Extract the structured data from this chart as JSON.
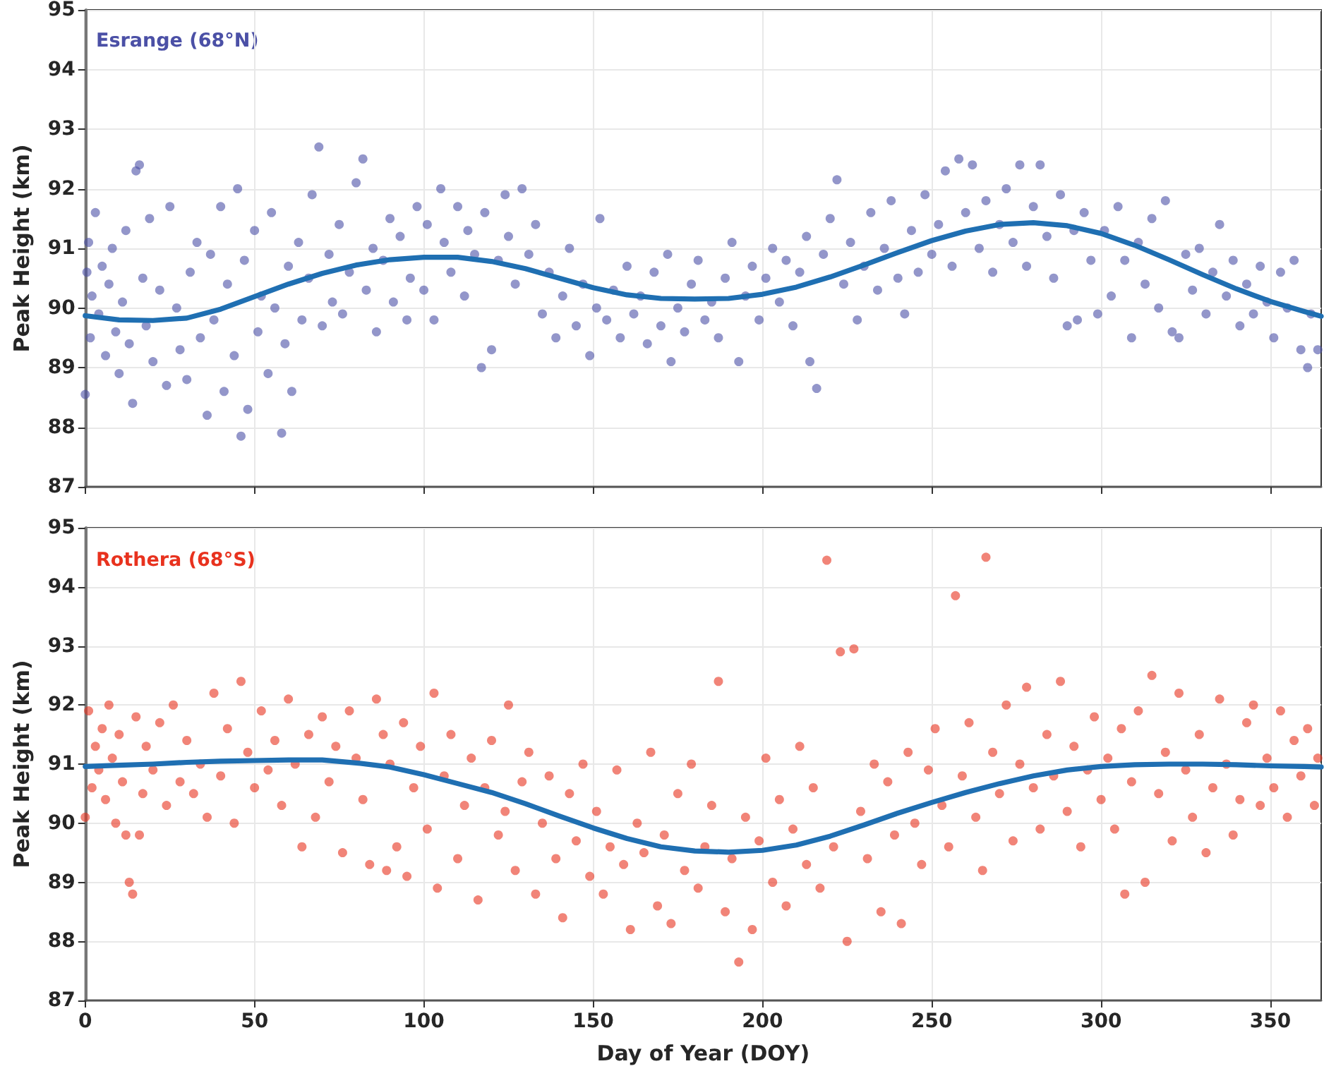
{
  "chart_data": [
    {
      "type": "scatter",
      "ylabel": "Peak Height (km)",
      "annotations": [
        "Esrange (68°N)"
      ],
      "xlim": [
        0,
        365
      ],
      "xticks": [
        0,
        50,
        100,
        150,
        200,
        250,
        300,
        350
      ],
      "ylim": [
        87,
        95
      ],
      "yticks": [
        87,
        88,
        89,
        90,
        91,
        92,
        93,
        94,
        95
      ],
      "grid": true,
      "tick_labels": "y",
      "marker": "circle",
      "series": [
        {
          "color": "#4b50a6",
          "x": [
            0,
            0.5,
            1,
            1.5,
            2,
            3,
            4,
            5,
            6,
            7,
            8,
            9,
            10,
            11,
            12,
            13,
            14,
            15,
            16,
            17,
            18,
            19,
            20,
            22,
            24,
            25,
            27,
            28,
            30,
            31,
            33,
            34,
            36,
            37,
            38,
            40,
            41,
            42,
            44,
            45,
            46,
            47,
            48,
            50,
            51,
            52,
            54,
            55,
            56,
            58,
            59,
            60,
            61,
            63,
            64,
            66,
            67,
            69,
            70,
            72,
            73,
            75,
            76,
            78,
            80,
            82,
            83,
            85,
            86,
            88,
            90,
            91,
            93,
            95,
            96,
            98,
            100,
            101,
            103,
            105,
            106,
            108,
            110,
            112,
            113,
            115,
            117,
            118,
            120,
            122,
            124,
            125,
            127,
            129,
            131,
            133,
            135,
            137,
            139,
            141,
            143,
            145,
            147,
            149,
            151,
            152,
            154,
            156,
            158,
            160,
            162,
            164,
            166,
            168,
            170,
            172,
            173,
            175,
            177,
            179,
            181,
            183,
            185,
            187,
            189,
            191,
            193,
            195,
            197,
            199,
            201,
            203,
            205,
            207,
            209,
            211,
            213,
            214,
            216,
            218,
            220,
            222,
            224,
            226,
            228,
            230,
            232,
            234,
            236,
            238,
            240,
            242,
            244,
            246,
            248,
            250,
            252,
            254,
            256,
            258,
            260,
            262,
            264,
            266,
            268,
            270,
            272,
            274,
            276,
            278,
            280,
            282,
            284,
            286,
            288,
            290,
            292,
            293,
            295,
            297,
            299,
            301,
            303,
            305,
            307,
            309,
            311,
            313,
            315,
            317,
            319,
            321,
            323,
            325,
            327,
            329,
            331,
            333,
            335,
            337,
            339,
            341,
            343,
            345,
            347,
            349,
            351,
            353,
            355,
            357,
            359,
            361,
            362,
            364
          ],
          "values": [
            88.55,
            90.6,
            91.1,
            89.5,
            90.2,
            91.6,
            89.9,
            90.7,
            89.2,
            90.4,
            91.0,
            89.6,
            88.9,
            90.1,
            91.3,
            89.4,
            88.4,
            92.3,
            92.4,
            90.5,
            89.7,
            91.5,
            89.1,
            90.3,
            88.7,
            91.7,
            90.0,
            89.3,
            88.8,
            90.6,
            91.1,
            89.5,
            88.2,
            90.9,
            89.8,
            91.7,
            88.6,
            90.4,
            89.2,
            92.0,
            87.85,
            90.8,
            88.3,
            91.3,
            89.6,
            90.2,
            88.9,
            91.6,
            90.0,
            87.9,
            89.4,
            90.7,
            88.6,
            91.1,
            89.8,
            90.5,
            91.9,
            92.7,
            89.7,
            90.9,
            90.1,
            91.4,
            89.9,
            90.6,
            92.1,
            92.5,
            90.3,
            91.0,
            89.6,
            90.8,
            91.5,
            90.1,
            91.2,
            89.8,
            90.5,
            91.7,
            90.3,
            91.4,
            89.8,
            92.0,
            91.1,
            90.6,
            91.7,
            90.2,
            91.3,
            90.9,
            89.0,
            91.6,
            89.3,
            90.8,
            91.9,
            91.2,
            90.4,
            92.0,
            90.9,
            91.4,
            89.9,
            90.6,
            89.5,
            90.2,
            91.0,
            89.7,
            90.4,
            89.2,
            90.0,
            91.5,
            89.8,
            90.3,
            89.5,
            90.7,
            89.9,
            90.2,
            89.4,
            90.6,
            89.7,
            90.9,
            89.1,
            90.0,
            89.6,
            90.4,
            90.8,
            89.8,
            90.1,
            89.5,
            90.5,
            91.1,
            89.1,
            90.2,
            90.7,
            89.8,
            90.5,
            91.0,
            90.1,
            90.8,
            89.7,
            90.6,
            91.2,
            89.1,
            88.65,
            90.9,
            91.5,
            92.15,
            90.4,
            91.1,
            89.8,
            90.7,
            91.6,
            90.3,
            91.0,
            91.8,
            90.5,
            89.9,
            91.3,
            90.6,
            91.9,
            90.9,
            91.4,
            92.3,
            90.7,
            92.5,
            91.6,
            92.4,
            91.0,
            91.8,
            90.6,
            91.4,
            92.0,
            91.1,
            92.4,
            90.7,
            91.7,
            92.4,
            91.2,
            90.5,
            91.9,
            89.7,
            91.3,
            89.8,
            91.6,
            90.8,
            89.9,
            91.3,
            90.2,
            91.7,
            90.8,
            89.5,
            91.1,
            90.4,
            91.5,
            90.0,
            91.8,
            89.6,
            89.5,
            90.9,
            90.3,
            91.0,
            89.9,
            90.6,
            91.4,
            90.2,
            90.8,
            89.7,
            90.4,
            89.9,
            90.7,
            90.1,
            89.5,
            90.6,
            90.0,
            90.8,
            89.3,
            89.0,
            89.9,
            89.3
          ]
        },
        {
          "type": "line",
          "color": "#1f6fb2",
          "marker": "none",
          "x": [
            0,
            10,
            20,
            30,
            40,
            50,
            60,
            70,
            80,
            90,
            100,
            110,
            120,
            130,
            140,
            150,
            160,
            170,
            180,
            190,
            200,
            210,
            220,
            230,
            240,
            250,
            260,
            270,
            280,
            290,
            300,
            310,
            320,
            330,
            340,
            350,
            360,
            365
          ],
          "values": [
            89.87,
            89.8,
            89.79,
            89.83,
            89.98,
            90.19,
            90.4,
            90.58,
            90.72,
            90.81,
            90.85,
            90.85,
            90.78,
            90.66,
            90.5,
            90.34,
            90.22,
            90.16,
            90.15,
            90.16,
            90.23,
            90.35,
            90.52,
            90.72,
            90.93,
            91.13,
            91.29,
            91.4,
            91.43,
            91.38,
            91.25,
            91.05,
            90.81,
            90.56,
            90.32,
            90.11,
            89.94,
            89.86
          ]
        }
      ]
    },
    {
      "type": "scatter",
      "xlabel": "Day of Year (DOY)",
      "ylabel": "Peak Height (km)",
      "annotations": [
        "Rothera (68°S)"
      ],
      "xlim": [
        0,
        365
      ],
      "xticks": [
        0,
        50,
        100,
        150,
        200,
        250,
        300,
        350
      ],
      "ylim": [
        87,
        95
      ],
      "yticks": [
        87,
        88,
        89,
        90,
        91,
        92,
        93,
        94,
        95
      ],
      "grid": true,
      "marker": "circle",
      "series": [
        {
          "color": "#e8321e",
          "x": [
            0,
            1,
            2,
            3,
            4,
            5,
            6,
            7,
            8,
            9,
            10,
            11,
            12,
            13,
            14,
            15,
            16,
            17,
            18,
            20,
            22,
            24,
            26,
            28,
            30,
            32,
            34,
            36,
            38,
            40,
            42,
            44,
            46,
            48,
            50,
            52,
            54,
            56,
            58,
            60,
            62,
            64,
            66,
            68,
            70,
            72,
            74,
            76,
            78,
            80,
            82,
            84,
            86,
            88,
            89,
            90,
            92,
            94,
            95,
            97,
            99,
            101,
            103,
            104,
            106,
            108,
            110,
            112,
            114,
            116,
            118,
            120,
            122,
            124,
            125,
            127,
            129,
            131,
            133,
            135,
            137,
            139,
            141,
            143,
            145,
            147,
            149,
            151,
            153,
            155,
            157,
            159,
            161,
            163,
            165,
            167,
            169,
            171,
            173,
            175,
            177,
            179,
            181,
            183,
            185,
            187,
            189,
            191,
            193,
            195,
            197,
            199,
            201,
            203,
            205,
            207,
            209,
            211,
            213,
            215,
            217,
            219,
            221,
            223,
            225,
            227,
            229,
            231,
            233,
            235,
            237,
            239,
            241,
            243,
            245,
            247,
            249,
            251,
            253,
            255,
            257,
            259,
            261,
            263,
            265,
            266,
            268,
            270,
            272,
            274,
            276,
            278,
            280,
            282,
            284,
            286,
            288,
            290,
            292,
            294,
            296,
            298,
            300,
            302,
            304,
            306,
            307,
            309,
            311,
            313,
            315,
            317,
            319,
            321,
            323,
            325,
            327,
            329,
            331,
            333,
            335,
            337,
            339,
            341,
            343,
            345,
            347,
            349,
            351,
            353,
            355,
            357,
            359,
            361,
            363,
            364
          ],
          "values": [
            90.1,
            91.9,
            90.6,
            91.3,
            90.9,
            91.6,
            90.4,
            92.0,
            91.1,
            90.0,
            91.5,
            90.7,
            89.8,
            89.0,
            88.8,
            91.8,
            89.8,
            90.5,
            91.3,
            90.9,
            91.7,
            90.3,
            92.0,
            90.7,
            91.4,
            90.5,
            91.0,
            90.1,
            92.2,
            90.8,
            91.6,
            90.0,
            92.4,
            91.2,
            90.6,
            91.9,
            90.9,
            91.4,
            90.3,
            92.1,
            91.0,
            89.6,
            91.5,
            90.1,
            91.8,
            90.7,
            91.3,
            89.5,
            91.9,
            91.1,
            90.4,
            89.3,
            92.1,
            91.5,
            89.2,
            91.0,
            89.6,
            91.7,
            89.1,
            90.6,
            91.3,
            89.9,
            92.2,
            88.9,
            90.8,
            91.5,
            89.4,
            90.3,
            91.1,
            88.7,
            90.6,
            91.4,
            89.8,
            90.2,
            92.0,
            89.2,
            90.7,
            91.2,
            88.8,
            90.0,
            90.8,
            89.4,
            88.4,
            90.5,
            89.7,
            91.0,
            89.1,
            90.2,
            88.8,
            89.6,
            90.9,
            89.3,
            88.2,
            90.0,
            89.5,
            91.2,
            88.6,
            89.8,
            88.3,
            90.5,
            89.2,
            91.0,
            88.9,
            89.6,
            90.3,
            92.4,
            88.5,
            89.4,
            87.65,
            90.1,
            88.2,
            89.7,
            91.1,
            89.0,
            90.4,
            88.6,
            89.9,
            91.3,
            89.3,
            90.6,
            88.9,
            94.45,
            89.6,
            92.9,
            88.0,
            92.95,
            90.2,
            89.4,
            91.0,
            88.5,
            90.7,
            89.8,
            88.3,
            91.2,
            90.0,
            89.3,
            90.9,
            91.6,
            90.3,
            89.6,
            93.85,
            90.8,
            91.7,
            90.1,
            89.2,
            94.5,
            91.2,
            90.5,
            92.0,
            89.7,
            91.0,
            92.3,
            90.6,
            89.9,
            91.5,
            90.8,
            92.4,
            90.2,
            91.3,
            89.6,
            90.9,
            91.8,
            90.4,
            91.1,
            89.9,
            91.6,
            88.8,
            90.7,
            91.9,
            89.0,
            92.5,
            90.5,
            91.2,
            89.7,
            92.2,
            90.9,
            90.1,
            91.5,
            89.5,
            90.6,
            92.1,
            91.0,
            89.8,
            90.4,
            91.7,
            92.0,
            90.3,
            91.1,
            90.6,
            91.9,
            90.1,
            91.4,
            90.8,
            91.6,
            90.3,
            91.1
          ]
        },
        {
          "type": "line",
          "color": "#1f6fb2",
          "marker": "none",
          "x": [
            0,
            10,
            20,
            30,
            40,
            50,
            60,
            70,
            80,
            90,
            100,
            110,
            120,
            130,
            140,
            150,
            160,
            170,
            180,
            190,
            200,
            210,
            220,
            230,
            240,
            250,
            260,
            270,
            280,
            290,
            300,
            310,
            320,
            330,
            340,
            350,
            360,
            365
          ],
          "values": [
            90.96,
            90.98,
            91.0,
            91.03,
            91.05,
            91.06,
            91.07,
            91.07,
            91.02,
            90.95,
            90.82,
            90.67,
            90.52,
            90.33,
            90.12,
            89.92,
            89.74,
            89.6,
            89.53,
            89.51,
            89.54,
            89.63,
            89.78,
            89.97,
            90.17,
            90.35,
            90.52,
            90.67,
            90.8,
            90.9,
            90.96,
            90.99,
            91.0,
            91.0,
            90.99,
            90.97,
            90.96,
            90.95
          ]
        }
      ]
    }
  ]
}
